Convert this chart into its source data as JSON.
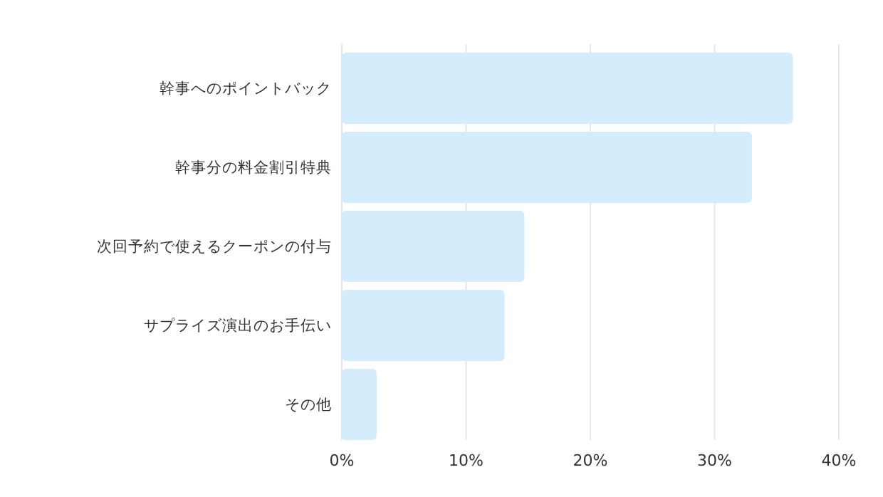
{
  "chart_data": {
    "type": "bar",
    "orientation": "horizontal",
    "categories": [
      "幹事へのポイントバック",
      "幹事分の料金割引特典",
      "次回予約で使えるクーポンの付与",
      "サプライズ演出のお手伝い",
      "その他"
    ],
    "values": [
      36.3,
      33.0,
      14.7,
      13.1,
      2.8
    ],
    "color": "#d4ecfb",
    "xlim": [
      0,
      40
    ],
    "xticks": [
      {
        "value": 0,
        "label": "0%"
      },
      {
        "value": 10,
        "label": "10%"
      },
      {
        "value": 20,
        "label": "20%"
      },
      {
        "value": 30,
        "label": "30%"
      },
      {
        "value": 40,
        "label": "40%"
      }
    ],
    "grid": "x"
  }
}
